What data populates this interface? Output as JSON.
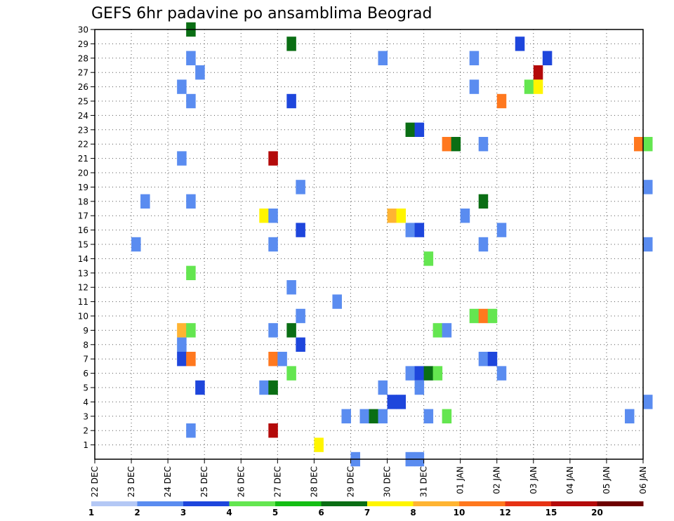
{
  "chart_data": {
    "type": "heatmap",
    "title": "GEFS 6hr padavine po ansamblima Beograd",
    "xlabel": "",
    "ylabel": "",
    "x_tick_labels": [
      "22 DEC",
      "23 DEC",
      "24 DEC",
      "25 DEC",
      "26 DEC",
      "27 DEC",
      "28 DEC",
      "29 DEC",
      "30 DEC",
      "31 DEC",
      "01 JAN",
      "02 JAN",
      "03 JAN",
      "04 JAN",
      "05 JAN",
      "06 JAN"
    ],
    "y_tick_labels": [
      1,
      2,
      3,
      4,
      5,
      6,
      7,
      8,
      9,
      10,
      11,
      12,
      13,
      14,
      15,
      16,
      17,
      18,
      19,
      20,
      21,
      22,
      23,
      24,
      25,
      26,
      27,
      28,
      29,
      30
    ],
    "x_unit": "days since 22 DEC 00Z",
    "x_step_days": 0.25,
    "grid": true,
    "colorbar": {
      "labels": [
        "1",
        "2",
        "3",
        "4",
        "5",
        "6",
        "7",
        "8",
        "10",
        "12",
        "15",
        "20"
      ],
      "colors": [
        "#b4c8f5",
        "#5a8cf0",
        "#1e46dc",
        "#64e650",
        "#14be14",
        "#0a6e14",
        "#fff500",
        "#ffb432",
        "#ff781e",
        "#e63214",
        "#b40a0a",
        "#6e0000"
      ]
    },
    "cells": [
      [
        2.5,
        30,
        5
      ],
      [
        5.25,
        29,
        5
      ],
      [
        11.5,
        29,
        2
      ],
      [
        2.5,
        28,
        1
      ],
      [
        7.75,
        28,
        1
      ],
      [
        10.25,
        28,
        1
      ],
      [
        12.25,
        28,
        2
      ],
      [
        2.75,
        27,
        1
      ],
      [
        12,
        27,
        10
      ],
      [
        2.25,
        26,
        1
      ],
      [
        10.25,
        26,
        1
      ],
      [
        11.75,
        26,
        3
      ],
      [
        12,
        26,
        6
      ],
      [
        2.5,
        25,
        1
      ],
      [
        5.25,
        25,
        2
      ],
      [
        11,
        25,
        8
      ],
      [
        8.5,
        23,
        5
      ],
      [
        8.75,
        23,
        2
      ],
      [
        9.5,
        22,
        8
      ],
      [
        9.75,
        22,
        5
      ],
      [
        10.5,
        22,
        1
      ],
      [
        14.75,
        22,
        8
      ],
      [
        15,
        22,
        3
      ],
      [
        2.25,
        21,
        1
      ],
      [
        4.75,
        21,
        10
      ],
      [
        5.5,
        19,
        1
      ],
      [
        15,
        19,
        1
      ],
      [
        1.25,
        18,
        1
      ],
      [
        2.5,
        18,
        1
      ],
      [
        10.5,
        18,
        5
      ],
      [
        4.5,
        17,
        6
      ],
      [
        4.75,
        17,
        1
      ],
      [
        8,
        17,
        7
      ],
      [
        8.25,
        17,
        6
      ],
      [
        10,
        17,
        1
      ],
      [
        5.5,
        16,
        2
      ],
      [
        8.5,
        16,
        1
      ],
      [
        8.75,
        16,
        2
      ],
      [
        11,
        16,
        1
      ],
      [
        1,
        15,
        1
      ],
      [
        4.75,
        15,
        1
      ],
      [
        10.5,
        15,
        1
      ],
      [
        15,
        15,
        1
      ],
      [
        9,
        14,
        3
      ],
      [
        2.5,
        13,
        3
      ],
      [
        5.25,
        12,
        1
      ],
      [
        6.5,
        11,
        1
      ],
      [
        5.5,
        10,
        1
      ],
      [
        10.25,
        10,
        3
      ],
      [
        10.5,
        10,
        8
      ],
      [
        10.75,
        10,
        3
      ],
      [
        2.25,
        9,
        7
      ],
      [
        2.5,
        9,
        3
      ],
      [
        4.75,
        9,
        1
      ],
      [
        5.25,
        9,
        5
      ],
      [
        9.25,
        9,
        3
      ],
      [
        9.5,
        9,
        1
      ],
      [
        2.25,
        8,
        1
      ],
      [
        5.5,
        8,
        2
      ],
      [
        2.25,
        7,
        2
      ],
      [
        2.5,
        7,
        8
      ],
      [
        4.75,
        7,
        8
      ],
      [
        5,
        7,
        1
      ],
      [
        10.5,
        7,
        1
      ],
      [
        10.75,
        7,
        2
      ],
      [
        5.25,
        6,
        3
      ],
      [
        8.5,
        6,
        1
      ],
      [
        8.75,
        6,
        2
      ],
      [
        9,
        6,
        5
      ],
      [
        9.25,
        6,
        3
      ],
      [
        11,
        6,
        1
      ],
      [
        2.75,
        5,
        2
      ],
      [
        4.5,
        5,
        1
      ],
      [
        4.75,
        5,
        5
      ],
      [
        7.75,
        5,
        1
      ],
      [
        8.75,
        5,
        1
      ],
      [
        8,
        4,
        2
      ],
      [
        8.25,
        4,
        2
      ],
      [
        15,
        4,
        1
      ],
      [
        6.75,
        3,
        1
      ],
      [
        7.25,
        3,
        1
      ],
      [
        7.5,
        3,
        5
      ],
      [
        7.75,
        3,
        1
      ],
      [
        9,
        3,
        1
      ],
      [
        9.5,
        3,
        3
      ],
      [
        14.5,
        3,
        1
      ],
      [
        2.5,
        2,
        1
      ],
      [
        4.75,
        2,
        10
      ],
      [
        6,
        1,
        6
      ],
      [
        7,
        0,
        1
      ],
      [
        8.5,
        0,
        1
      ],
      [
        8.75,
        0,
        1
      ]
    ]
  }
}
